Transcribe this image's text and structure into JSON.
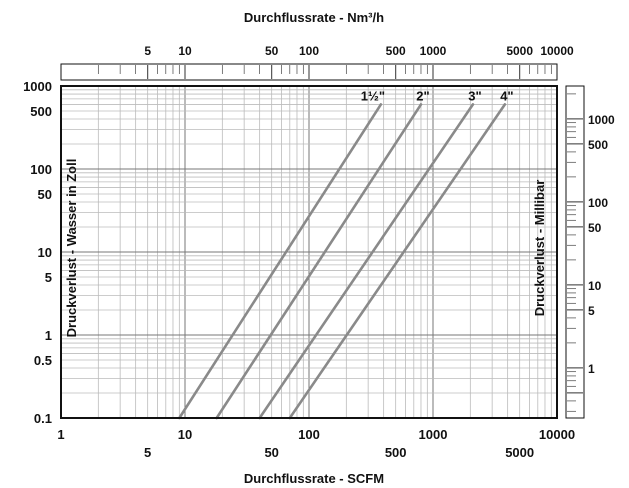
{
  "chart_data": {
    "type": "line",
    "title_top": "Durchflussrate - Nm³/h",
    "xlabel": "Durchflussrate - SCFM",
    "ylabel": "Druckverlust - Wasser in Zoll",
    "ylabel_right": "Druckverlust - Millibar",
    "x_scale": "log",
    "y_scale": "log",
    "xlim": [
      1,
      10000
    ],
    "ylim": [
      0.1,
      1000
    ],
    "grid": true,
    "x_ticks": [
      {
        "value": 1,
        "label": "1"
      },
      {
        "value": 5,
        "label": "5"
      },
      {
        "value": 10,
        "label": "10"
      },
      {
        "value": 50,
        "label": "50"
      },
      {
        "value": 100,
        "label": "100"
      },
      {
        "value": 500,
        "label": "500"
      },
      {
        "value": 1000,
        "label": "1000"
      },
      {
        "value": 5000,
        "label": "5000"
      },
      {
        "value": 10000,
        "label": "10000"
      }
    ],
    "y_ticks": [
      {
        "value": 0.1,
        "label": "0.1"
      },
      {
        "value": 0.5,
        "label": "0.5"
      },
      {
        "value": 1,
        "label": "1"
      },
      {
        "value": 5,
        "label": "5"
      },
      {
        "value": 10,
        "label": "10"
      },
      {
        "value": 50,
        "label": "50"
      },
      {
        "value": 100,
        "label": "100"
      },
      {
        "value": 500,
        "label": "500"
      },
      {
        "value": 1000,
        "label": "1000"
      }
    ],
    "top_axis": {
      "xlim_scfm": [
        1,
        10000
      ],
      "ticks": [
        {
          "value": 5,
          "label": "5"
        },
        {
          "value": 10,
          "label": "10"
        },
        {
          "value": 50,
          "label": "50"
        },
        {
          "value": 100,
          "label": "100"
        },
        {
          "value": 500,
          "label": "500"
        },
        {
          "value": 1000,
          "label": "1000"
        },
        {
          "value": 5000,
          "label": "5000"
        },
        {
          "value": 10000,
          "label": "10000"
        }
      ],
      "scale_start_nm3h": 1.6
    },
    "right_axis": {
      "ticks": [
        {
          "value": 1,
          "label": "1"
        },
        {
          "value": 5,
          "label": "5"
        },
        {
          "value": 10,
          "label": "10"
        },
        {
          "value": 50,
          "label": "50"
        },
        {
          "value": 100,
          "label": "100"
        },
        {
          "value": 500,
          "label": "500"
        },
        {
          "value": 1000,
          "label": "1000"
        }
      ],
      "scale_end_mbar": 2490
    },
    "series": [
      {
        "name": "1½\"",
        "points": [
          [
            9,
            0.1
          ],
          [
            380,
            600
          ]
        ]
      },
      {
        "name": "2\"",
        "points": [
          [
            18,
            0.1
          ],
          [
            800,
            600
          ]
        ]
      },
      {
        "name": "3\"",
        "points": [
          [
            40,
            0.1
          ],
          [
            2100,
            600
          ]
        ]
      },
      {
        "name": "4\"",
        "points": [
          [
            70,
            0.1
          ],
          [
            3800,
            600
          ]
        ]
      }
    ],
    "line_color": "#8a8a8a"
  }
}
